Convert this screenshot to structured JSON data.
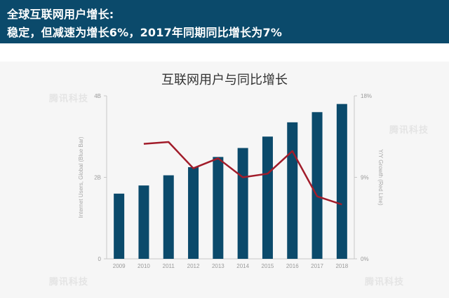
{
  "header": {
    "line1": "全球互联网用户增长:",
    "line2": "稳定，但减速为增长6%，2017年同期同比增长为7%"
  },
  "watermark": "腾讯科技",
  "colors": {
    "header_bg": "#0b4a6b",
    "bar": "#0b4a6b",
    "line": "#a11c2a"
  },
  "chart_data": {
    "type": "bar",
    "title": "互联网用户与同比增长",
    "categories": [
      "2009",
      "2010",
      "2011",
      "2012",
      "2013",
      "2014",
      "2015",
      "2016",
      "2017",
      "2018"
    ],
    "series": [
      {
        "name": "Internet Users, Global (Blue Bar)",
        "type": "bar",
        "axis": "left",
        "values": [
          1.6,
          1.8,
          2.05,
          2.25,
          2.5,
          2.72,
          3.0,
          3.35,
          3.6,
          3.8
        ]
      },
      {
        "name": "Y/Y Growth (Red Line)",
        "type": "line",
        "axis": "right",
        "values": [
          null,
          12.7,
          12.9,
          10.0,
          11.1,
          9.0,
          9.4,
          11.9,
          6.9,
          6.0
        ]
      }
    ],
    "ylabel": "Internet Users, Global (Blue Bar)",
    "ylabel_right": "Y/Y Growth (Red Line)",
    "ylim": [
      0,
      4
    ],
    "ylim_right": [
      0,
      18
    ],
    "yticks": [
      "0",
      "2B",
      "4B"
    ],
    "yticks_right": [
      "0%",
      "9%",
      "18%"
    ],
    "grid": false,
    "legend": "none"
  }
}
